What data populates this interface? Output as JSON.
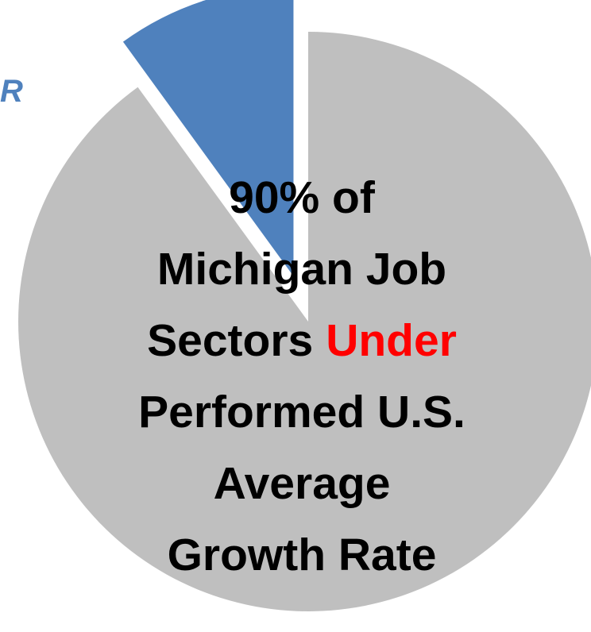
{
  "chart_data": {
    "type": "pie",
    "categories": [
      null,
      "R"
    ],
    "values": [
      90,
      10
    ],
    "colors": [
      "#bfbfbf",
      "#4f81bd"
    ],
    "exploded": [
      false,
      true
    ],
    "annotation": [
      [
        {
          "text": "90% of",
          "color": "#000000"
        }
      ],
      [
        {
          "text": "Michigan Job",
          "color": "#000000"
        }
      ],
      [
        {
          "text": "Sectors",
          "color": "#000000"
        },
        {
          "text": "Under",
          "color": "#ff0000"
        }
      ],
      [
        {
          "text": "Performed U.S.",
          "color": "#000000"
        }
      ],
      [
        {
          "text": "Average",
          "color": "#000000"
        }
      ],
      [
        {
          "text": "Growth Rate",
          "color": "#000000"
        }
      ]
    ]
  }
}
